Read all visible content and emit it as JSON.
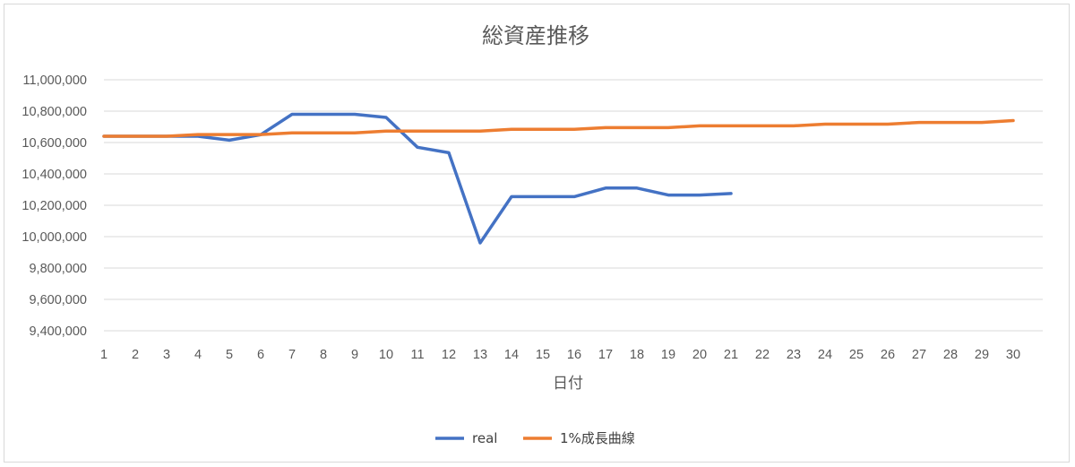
{
  "chart_data": {
    "type": "line",
    "title": "総資産推移",
    "xlabel": "日付",
    "ylabel": "",
    "ylim": [
      9400000,
      11000000
    ],
    "y_ticks": [
      9400000,
      9600000,
      9800000,
      10000000,
      10200000,
      10400000,
      10600000,
      10800000,
      11000000
    ],
    "x": [
      1,
      2,
      3,
      4,
      5,
      6,
      7,
      8,
      9,
      10,
      11,
      12,
      13,
      14,
      15,
      16,
      17,
      18,
      19,
      20,
      21,
      22,
      23,
      24,
      25,
      26,
      27,
      28,
      29,
      30
    ],
    "grid": true,
    "legend_position": "bottom",
    "series": [
      {
        "name": "real",
        "color": "#4472c4",
        "values": [
          10640000,
          10640000,
          10640000,
          10640000,
          10615000,
          10650000,
          10780000,
          10780000,
          10780000,
          10760000,
          10570000,
          10535000,
          9960000,
          10255000,
          10255000,
          10255000,
          10310000,
          10310000,
          10265000,
          10265000,
          10275000,
          null,
          null,
          null,
          null,
          null,
          null,
          null,
          null,
          null
        ]
      },
      {
        "name": "1%成長曲線",
        "color": "#ed7d31",
        "values": [
          10640000,
          10640000,
          10640000,
          10651000,
          10651000,
          10651000,
          10662000,
          10662000,
          10662000,
          10673000,
          10673000,
          10673000,
          10673000,
          10684000,
          10684000,
          10684000,
          10695000,
          10695000,
          10695000,
          10706000,
          10706000,
          10706000,
          10706000,
          10717000,
          10717000,
          10717000,
          10728000,
          10728000,
          10728000,
          10740000
        ]
      }
    ]
  }
}
